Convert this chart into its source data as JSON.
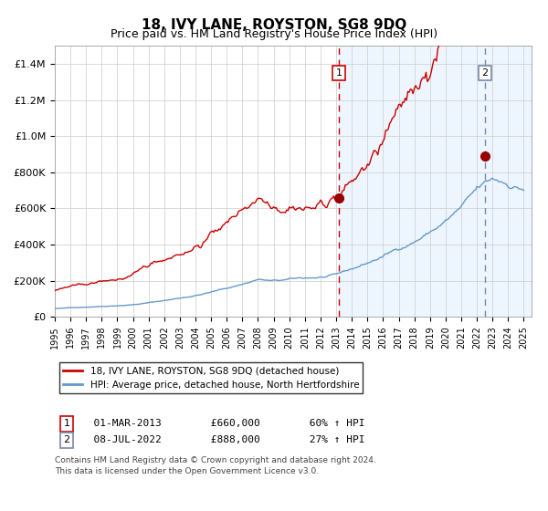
{
  "title": "18, IVY LANE, ROYSTON, SG8 9DQ",
  "subtitle": "Price paid vs. HM Land Registry's House Price Index (HPI)",
  "legend_line1": "18, IVY LANE, ROYSTON, SG8 9DQ (detached house)",
  "legend_line2": "HPI: Average price, detached house, North Hertfordshire",
  "annotation1_label": "1",
  "annotation1_date": "01-MAR-2013",
  "annotation1_price": "£660,000",
  "annotation1_hpi": "60% ↑ HPI",
  "annotation2_label": "2",
  "annotation2_date": "08-JUL-2022",
  "annotation2_price": "£888,000",
  "annotation2_hpi": "27% ↑ HPI",
  "footnote_line1": "Contains HM Land Registry data © Crown copyright and database right 2024.",
  "footnote_line2": "This data is licensed under the Open Government Licence v3.0.",
  "red_line_color": "#cc0000",
  "blue_line_color": "#6699cc",
  "dot_color": "#990000",
  "vline1_color": "#cc0000",
  "vline2_color": "#7788aa",
  "bg_shade_color": "#ddeeff",
  "grid_color": "#cccccc",
  "title_fontsize": 11,
  "subtitle_fontsize": 9,
  "ylim": [
    0,
    1500000
  ],
  "xstart_year": 1995,
  "xend_year": 2025,
  "sale1_year": 2013.17,
  "sale1_price": 660000,
  "sale2_year": 2022.52,
  "sale2_price": 888000
}
